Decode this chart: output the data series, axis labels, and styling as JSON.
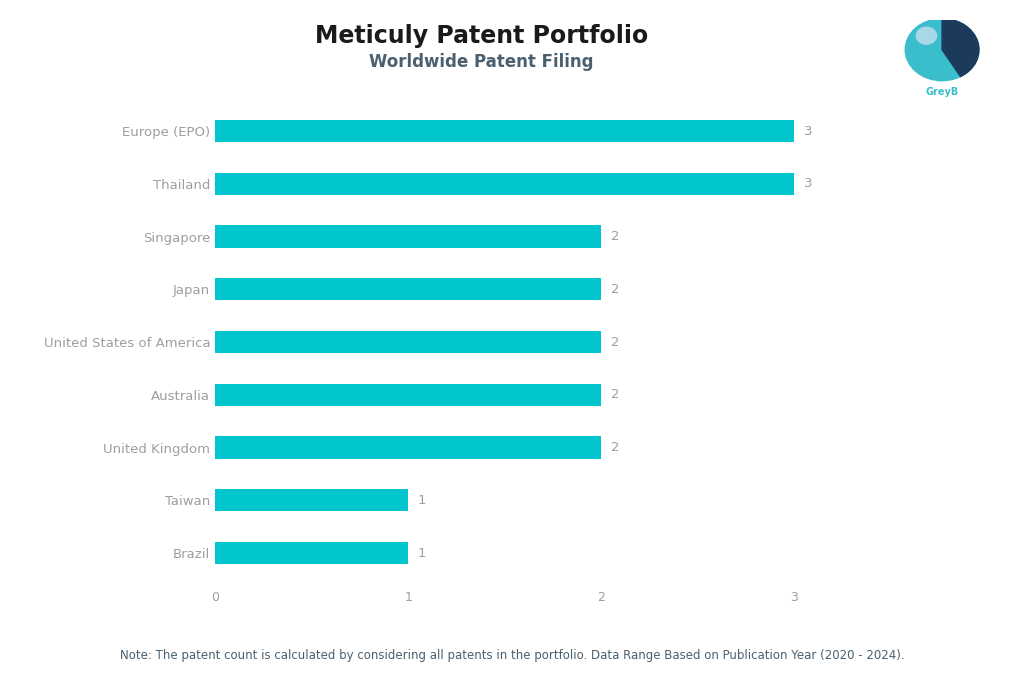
{
  "title": "Meticuly Patent Portfolio",
  "subtitle": "Worldwide Patent Filing",
  "categories": [
    "Brazil",
    "Taiwan",
    "United Kingdom",
    "Australia",
    "United States of America",
    "Japan",
    "Singapore",
    "Thailand",
    "Europe (EPO)"
  ],
  "values": [
    1,
    1,
    2,
    2,
    2,
    2,
    2,
    3,
    3
  ],
  "bar_color": "#00C5CD",
  "label_color": "#9E9E9E",
  "title_color": "#1a1a1a",
  "subtitle_color": "#4a6070",
  "note_text": "Note: The patent count is calculated by considering all patents in the portfolio. Data Range Based on Publication Year (2020 - 2024).",
  "note_color": "#4a6070",
  "xlim": [
    0,
    3.5
  ],
  "xticks": [
    0,
    1,
    2,
    3
  ],
  "background_color": "#FFFFFF",
  "title_fontsize": 17,
  "subtitle_fontsize": 12,
  "ylabel_fontsize": 9.5,
  "value_fontsize": 9.5,
  "note_fontsize": 8.5,
  "xtick_fontsize": 9,
  "bar_height": 0.42
}
